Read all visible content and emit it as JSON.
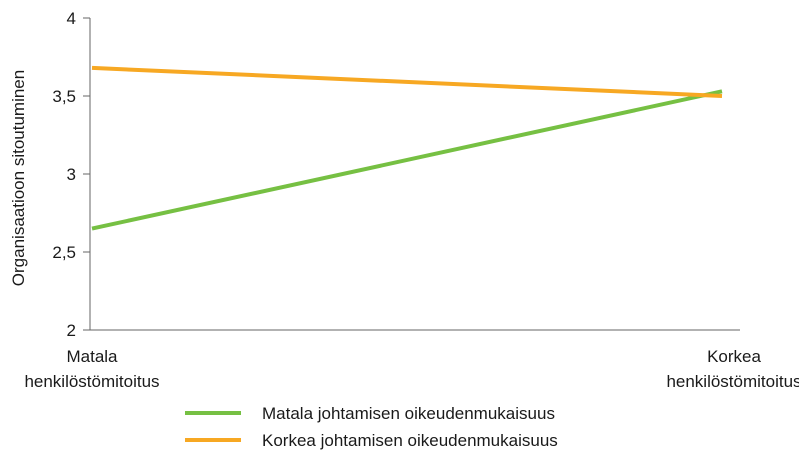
{
  "chart_data": {
    "type": "line",
    "ylabel": "Organisaatioon sitoutuminen",
    "ylim": [
      2,
      4
    ],
    "yticks": [
      "2",
      "2,5",
      "3",
      "3,5",
      "4"
    ],
    "categories": [
      [
        "Matala",
        "henkilöstömitoitus"
      ],
      [
        "Korkea",
        "henkilöstömitoitus"
      ]
    ],
    "series": [
      {
        "name": "Matala johtamisen oikeudenmukaisuus",
        "values": [
          2.65,
          3.53
        ],
        "color": "#76c043"
      },
      {
        "name": "Korkea johtamisen oikeudenmukaisuus",
        "values": [
          3.68,
          3.5
        ],
        "color": "#f7a823"
      }
    ],
    "grid": false,
    "legend": "bottom"
  }
}
